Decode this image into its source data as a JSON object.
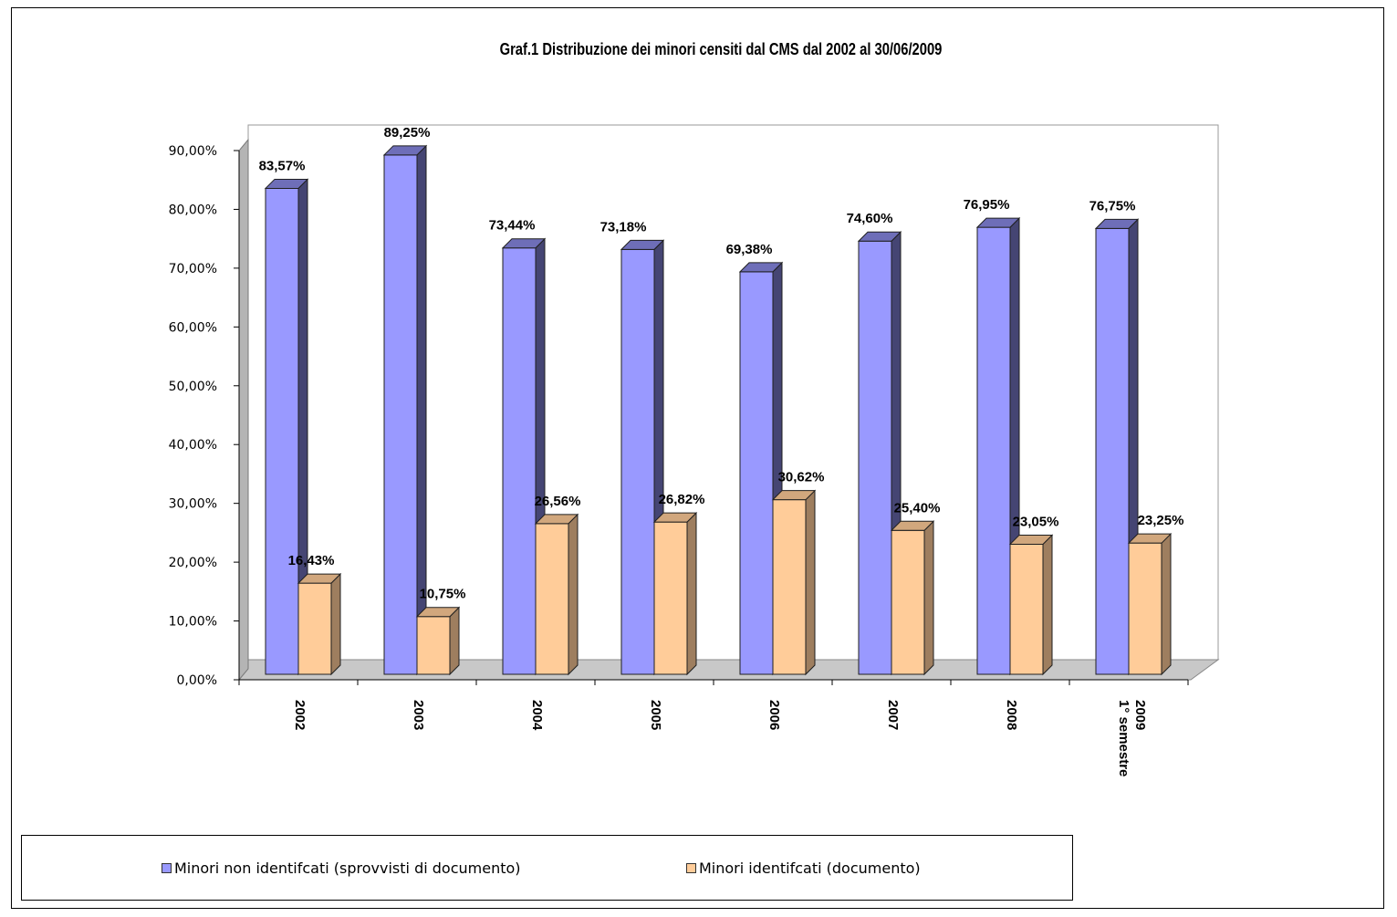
{
  "chart_data": {
    "type": "bar",
    "title": "Graf.1 Distribuzione dei minori censiti dal CMS dal 2002 al 30/06/2009",
    "categories": [
      "2002",
      "2003",
      "2004",
      "2005",
      "2006",
      "2007",
      "2008",
      "1° semestre 2009"
    ],
    "series": [
      {
        "name": "Minori non identifcati (sprovvisti di documento)",
        "color": "#9999ff",
        "values": [
          83.57,
          89.25,
          73.44,
          73.18,
          69.38,
          74.6,
          76.95,
          76.75
        ],
        "labels": [
          "83,57%",
          "89,25%",
          "73,44%",
          "73,18%",
          "69,38%",
          "74,60%",
          "76,95%",
          "76,75%"
        ]
      },
      {
        "name": "Minori identifcati (documento)",
        "color": "#ffcc99",
        "values": [
          16.43,
          10.75,
          26.56,
          26.82,
          30.62,
          25.4,
          23.05,
          23.25
        ],
        "labels": [
          "16,43%",
          "10,75%",
          "26,56%",
          "26,82%",
          "30,62%",
          "25,40%",
          "23,05%",
          "23,25%"
        ]
      }
    ],
    "ylim": [
      0,
      90
    ],
    "yticks": [
      "0,00%",
      "10,00%",
      "20,00%",
      "30,00%",
      "40,00%",
      "50,00%",
      "60,00%",
      "70,00%",
      "80,00%",
      "90,00%"
    ],
    "xlabel": "",
    "ylabel": "",
    "legend": "bottom",
    "grid": false,
    "style": "3d-clustered-column"
  }
}
